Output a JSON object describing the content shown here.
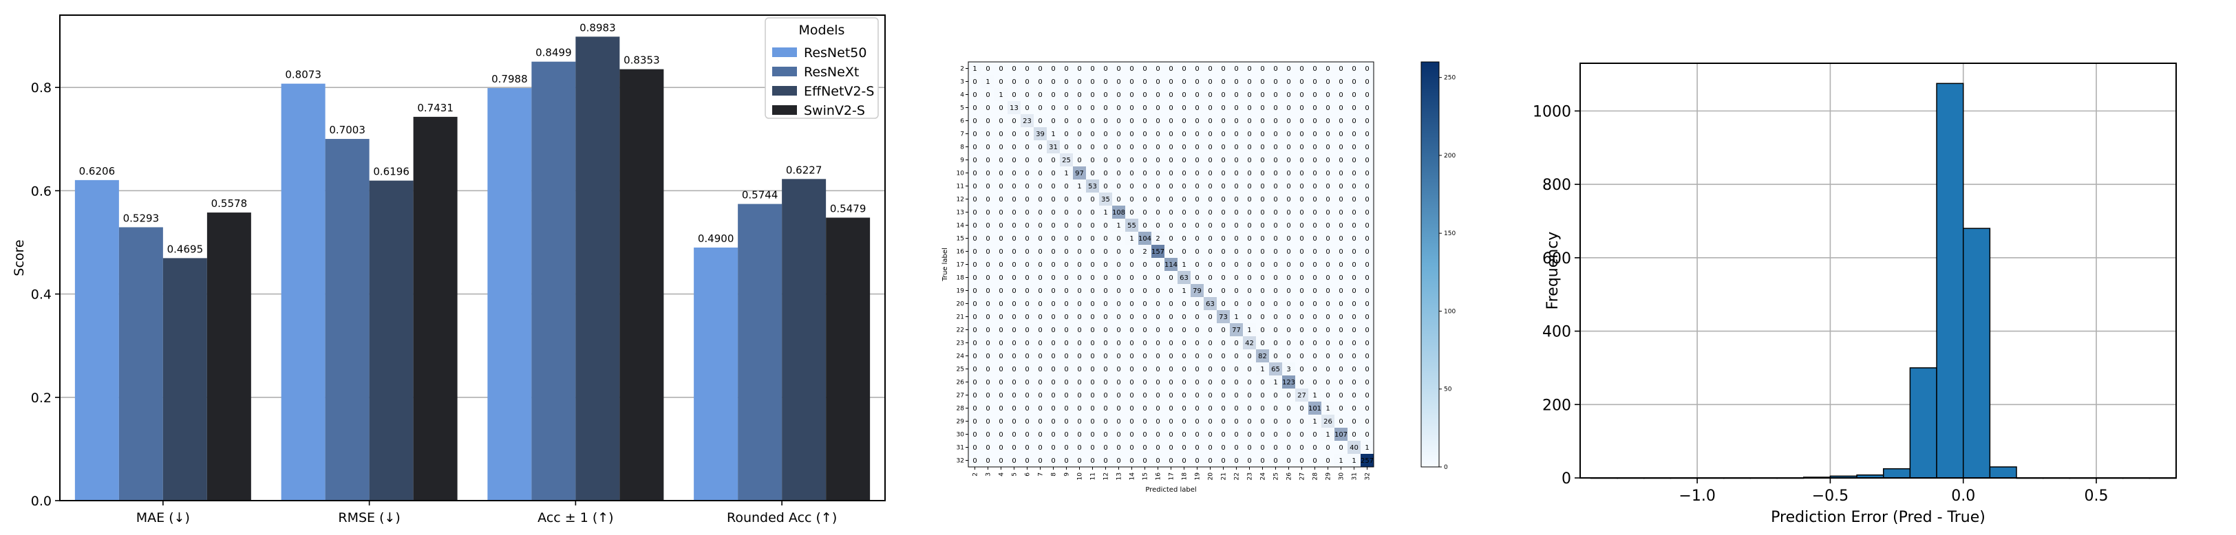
{
  "colors": {
    "resnet50": "#6a9ae0",
    "resnext": "#4e6fa0",
    "effnet": "#364863",
    "swin": "#232428",
    "hist_bar": "#1f77b4",
    "cm_dark": "#08306b",
    "cm_light": "#f7fbff"
  },
  "chart_data": [
    {
      "type": "bar",
      "categories": [
        "MAE (↓)",
        "RMSE (↓)",
        "Acc ± 1 (↑)",
        "Rounded Acc (↑)"
      ],
      "series": [
        {
          "name": "ResNet50",
          "values": [
            0.6206,
            0.8073,
            0.7988,
            0.49
          ],
          "labels": [
            "0.6206",
            "0.8073",
            "0.7988",
            "0.4900"
          ]
        },
        {
          "name": "ResNeXt",
          "values": [
            0.5293,
            0.7003,
            0.8499,
            0.5744
          ],
          "labels": [
            "0.5293",
            "0.7003",
            "0.8499",
            "0.5744"
          ]
        },
        {
          "name": "EffNetV2-S",
          "values": [
            0.4695,
            0.6196,
            0.8983,
            0.6227
          ],
          "labels": [
            "0.4695",
            "0.6196",
            "0.8983",
            "0.6227"
          ]
        },
        {
          "name": "SwinV2-S",
          "values": [
            0.5578,
            0.7431,
            0.8353,
            0.5479
          ],
          "labels": [
            "0.5578",
            "0.7431",
            "0.8353",
            "0.5479"
          ]
        }
      ],
      "ylabel": "Score",
      "ylim": [
        0,
        0.94
      ],
      "yticks": [
        "0.0",
        "0.2",
        "0.4",
        "0.6",
        "0.8"
      ],
      "legend_title": "Models",
      "legend_position": "upper right",
      "grid": "horizontal"
    },
    {
      "type": "heatmap",
      "labels": [
        "2",
        "3",
        "4",
        "5",
        "6",
        "7",
        "8",
        "9",
        "10",
        "11",
        "12",
        "13",
        "14",
        "15",
        "16",
        "17",
        "18",
        "19",
        "20",
        "21",
        "22",
        "23",
        "24",
        "25",
        "26",
        "27",
        "28",
        "29",
        "30",
        "31",
        "32"
      ],
      "xlabel": "Predicted label",
      "ylabel": "True label",
      "diagonal": [
        1,
        1,
        1,
        13,
        23,
        39,
        31,
        25,
        97,
        53,
        35,
        108,
        55,
        104,
        157,
        114,
        63,
        79,
        63,
        73,
        77,
        42,
        82,
        65,
        123,
        27,
        101,
        26,
        107,
        40,
        257
      ],
      "off_diagonal": [
        {
          "r": 8,
          "c": 7,
          "v": 1
        },
        {
          "r": 11,
          "c": 10,
          "v": 1
        },
        {
          "r": 12,
          "c": 11,
          "v": 1
        },
        {
          "r": 13,
          "c": 12,
          "v": 1
        },
        {
          "r": 13,
          "c": 14,
          "v": 2
        },
        {
          "r": 14,
          "c": 13,
          "v": 2
        },
        {
          "r": 15,
          "c": 16,
          "v": 1
        },
        {
          "r": 17,
          "c": 16,
          "v": 1
        },
        {
          "r": 19,
          "c": 20,
          "v": 1
        },
        {
          "r": 20,
          "c": 21,
          "v": 1
        },
        {
          "r": 23,
          "c": 22,
          "v": 1
        },
        {
          "r": 23,
          "c": 24,
          "v": 3
        },
        {
          "r": 24,
          "c": 23,
          "v": 1
        },
        {
          "r": 25,
          "c": 26,
          "v": 1
        },
        {
          "r": 26,
          "c": 27,
          "v": 1
        },
        {
          "r": 27,
          "c": 26,
          "v": 1
        },
        {
          "r": 28,
          "c": 27,
          "v": 1
        },
        {
          "r": 29,
          "c": 30,
          "v": 1
        },
        {
          "r": 30,
          "c": 29,
          "v": 1
        },
        {
          "r": 30,
          "c": 28,
          "v": 1
        },
        {
          "r": 5,
          "c": 6,
          "v": 1
        },
        {
          "r": 9,
          "c": 8,
          "v": 1
        }
      ],
      "colorbar_ticks": [
        "0",
        "50",
        "100",
        "150",
        "200",
        "250"
      ],
      "colorbar_max": 260
    },
    {
      "type": "bar",
      "subtype": "histogram",
      "xlabel": "Prediction Error (Pred - True)",
      "ylabel": "Frequency",
      "xlim": [
        -1.44,
        0.8
      ],
      "ylim": [
        0,
        1130
      ],
      "xticks": [
        -1.0,
        -0.5,
        0.0,
        0.5
      ],
      "xtick_labels": [
        "−1.0",
        "−0.5",
        "0.0",
        "0.5"
      ],
      "yticks": [
        0,
        200,
        400,
        600,
        800,
        1000
      ],
      "bin_width": 0.1,
      "bins": [
        {
          "x0": -1.4,
          "count": 0
        },
        {
          "x0": -1.3,
          "count": 0
        },
        {
          "x0": -1.2,
          "count": 0
        },
        {
          "x0": -1.1,
          "count": 0
        },
        {
          "x0": -1.0,
          "count": 0
        },
        {
          "x0": -0.9,
          "count": 0
        },
        {
          "x0": -0.8,
          "count": 0
        },
        {
          "x0": -0.7,
          "count": 0
        },
        {
          "x0": -0.6,
          "count": 2
        },
        {
          "x0": -0.5,
          "count": 5
        },
        {
          "x0": -0.4,
          "count": 8
        },
        {
          "x0": -0.3,
          "count": 25
        },
        {
          "x0": -0.2,
          "count": 300
        },
        {
          "x0": -0.1,
          "count": 1075
        },
        {
          "x0": 0.0,
          "count": 680
        },
        {
          "x0": 0.1,
          "count": 30
        },
        {
          "x0": 0.2,
          "count": 0
        },
        {
          "x0": 0.3,
          "count": 0
        },
        {
          "x0": 0.4,
          "count": 0
        },
        {
          "x0": 0.5,
          "count": 0
        },
        {
          "x0": 0.6,
          "count": 0
        },
        {
          "x0": 0.7,
          "count": 0
        }
      ],
      "grid": "both"
    }
  ]
}
